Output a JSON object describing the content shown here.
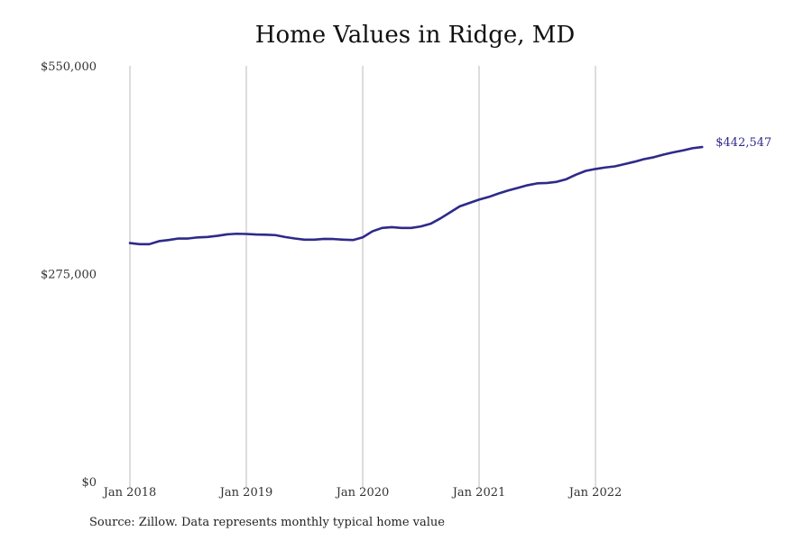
{
  "chart_data": {
    "type": "line",
    "title": "Home Values in Ridge, MD",
    "xlabel": "",
    "ylabel": "",
    "ylim": [
      0,
      550000
    ],
    "y_ticks": [
      {
        "value": 0,
        "label": "$0"
      },
      {
        "value": 275000,
        "label": "$275,000"
      },
      {
        "value": 550000,
        "label": "$550,000"
      }
    ],
    "x_ticks": [
      {
        "value": "2018-01",
        "label": "Jan 2018"
      },
      {
        "value": "2019-01",
        "label": "Jan 2019"
      },
      {
        "value": "2020-01",
        "label": "Jan 2020"
      },
      {
        "value": "2021-01",
        "label": "Jan 2021"
      },
      {
        "value": "2022-01",
        "label": "Jan 2022"
      }
    ],
    "grid": "vertical",
    "line_color": "#2e2a8a",
    "grid_color": "#bbbbbb",
    "end_label": "$442,547",
    "series": [
      {
        "x": [
          "2018-01",
          "2018-02",
          "2018-03",
          "2018-04",
          "2018-05",
          "2018-06",
          "2018-07",
          "2018-08",
          "2018-09",
          "2018-10",
          "2018-11",
          "2018-12",
          "2019-01",
          "2019-02",
          "2019-03",
          "2019-04",
          "2019-05",
          "2019-06",
          "2019-07",
          "2019-08",
          "2019-09",
          "2019-10",
          "2019-11",
          "2019-12",
          "2020-01",
          "2020-02",
          "2020-03",
          "2020-04",
          "2020-05",
          "2020-06",
          "2020-07",
          "2020-08",
          "2020-09",
          "2020-10",
          "2020-11",
          "2020-12",
          "2021-01",
          "2021-02",
          "2021-03",
          "2021-04",
          "2021-05",
          "2021-06",
          "2021-07",
          "2021-08",
          "2021-09",
          "2021-10",
          "2021-11",
          "2021-12",
          "2022-01",
          "2022-02",
          "2022-03",
          "2022-04",
          "2022-05",
          "2022-06",
          "2022-07",
          "2022-08",
          "2022-09",
          "2022-10",
          "2022-11",
          "2022-12"
        ],
        "y": [
          315500,
          314000,
          314000,
          318000,
          319500,
          321500,
          321500,
          323000,
          323500,
          325000,
          327000,
          327800,
          327500,
          326800,
          326500,
          326000,
          323500,
          321500,
          320000,
          320000,
          321000,
          320800,
          320000,
          319500,
          323000,
          331000,
          335500,
          336500,
          335500,
          335500,
          337500,
          341000,
          348000,
          356000,
          364000,
          368500,
          373000,
          376500,
          381000,
          385000,
          388500,
          392000,
          394500,
          395000,
          396500,
          400000,
          406000,
          411000,
          413500,
          415500,
          417000,
          420000,
          423000,
          426500,
          429000,
          432500,
          435500,
          438000,
          441000,
          442547
        ]
      }
    ]
  },
  "source_note": "Source: Zillow. Data represents monthly typical home value"
}
